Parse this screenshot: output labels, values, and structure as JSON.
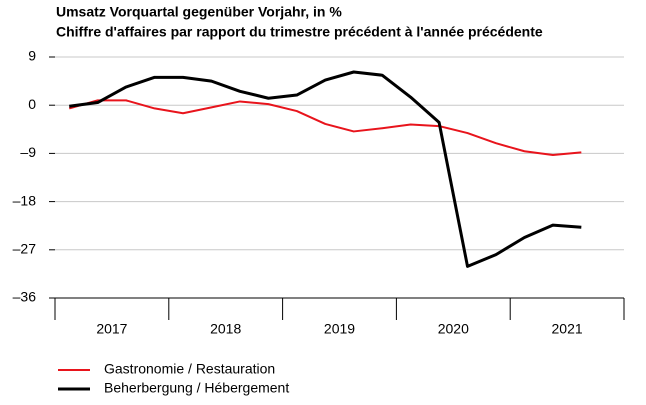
{
  "chart_data": {
    "type": "line",
    "title": "Umsatz Vorquartal gegenüber Vorjahr, in %",
    "subtitle": "Chiffre d'affaires par rapport du trimestre précédent à l'année précédente",
    "categories": [
      null,
      null,
      null,
      null,
      null,
      null,
      null,
      null,
      null,
      null,
      null,
      null,
      null,
      null,
      null,
      null,
      null,
      null,
      null
    ],
    "year_labels": [
      "2017",
      "2018",
      "2019",
      "2020",
      "2021"
    ],
    "series": [
      {
        "name": "Gastronomie / Restauration",
        "color": "#e8141c",
        "values": [
          -0.6,
          0.9,
          0.9,
          -0.6,
          -1.5,
          -0.4,
          0.7,
          0.2,
          -1.1,
          -3.5,
          -4.9,
          -4.3,
          -3.6,
          -3.9,
          -5.2,
          -7.1,
          -8.6,
          -9.3,
          -8.8
        ]
      },
      {
        "name": "Beherbergung / Hébergement",
        "color": "#000000",
        "values": [
          -0.2,
          0.5,
          3.4,
          5.2,
          5.2,
          4.5,
          2.6,
          1.3,
          1.9,
          4.7,
          6.2,
          5.6,
          1.5,
          -3.2,
          -30.1,
          -27.9,
          -24.7,
          -22.4,
          -22.8
        ]
      }
    ],
    "ylim": [
      -36,
      9
    ],
    "yticks": [
      9,
      0,
      {
        "value": -9,
        "label": "–9"
      },
      {
        "value": -18,
        "label": "–18"
      },
      {
        "value": -27,
        "label": "–27"
      },
      {
        "value": -36,
        "label": "–36"
      }
    ],
    "grid": true
  }
}
